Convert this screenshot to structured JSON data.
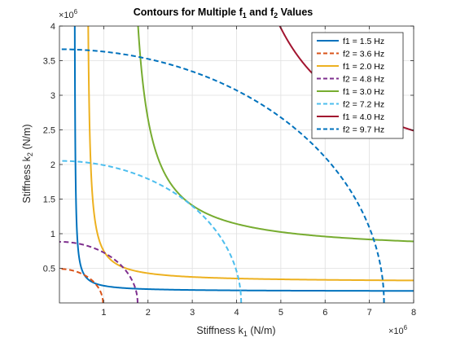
{
  "chart_data": {
    "type": "line",
    "title": {
      "prefix": "Contours for Multiple f",
      "sub1": "1",
      "mid": " and f",
      "sub2": "2",
      "suffix": " Values"
    },
    "xlabel": {
      "main": "Stiffness k",
      "sub": "1",
      "unit": " (N/m)"
    },
    "ylabel": {
      "main": "Stiffness k",
      "sub": "2",
      "unit": " (N/m)"
    },
    "x_exponent": {
      "base": "×10",
      "power": "6"
    },
    "y_exponent": {
      "base": "×10",
      "power": "6"
    },
    "xlim": [
      0,
      8
    ],
    "ylim": [
      0,
      4
    ],
    "x_ticks": [
      1,
      2,
      3,
      4,
      5,
      6,
      7,
      8
    ],
    "y_ticks": [
      0.5,
      1,
      1.5,
      2,
      2.5,
      3,
      3.5,
      4
    ],
    "x_tick_labels": [
      "1",
      "2",
      "3",
      "4",
      "5",
      "6",
      "7",
      "8"
    ],
    "y_tick_labels": [
      "0.5",
      "1",
      "1.5",
      "2",
      "2.5",
      "3",
      "3.5",
      "4"
    ],
    "grid": true,
    "legend_position": "top-right",
    "series": [
      {
        "name": "f1 = 1.5 Hz",
        "kind": "f1",
        "style": "solid",
        "color": "#0072BD",
        "asymptote_x": 0.332,
        "asymptote_y": 0.166
      },
      {
        "name": "f2 = 3.6 Hz",
        "kind": "f2",
        "style": "dashed",
        "color": "#D95319",
        "x_intercept": 0.983,
        "y_intercept": 0.491
      },
      {
        "name": "f1 = 2.0 Hz",
        "kind": "f1",
        "style": "solid",
        "color": "#EDB120",
        "asymptote_x": 0.601,
        "asymptote_y": 0.3
      },
      {
        "name": "f2 = 4.8 Hz",
        "kind": "f2",
        "style": "dashed",
        "color": "#7E2F8E",
        "x_intercept": 1.765,
        "y_intercept": 0.883
      },
      {
        "name": "f1 = 3.0 Hz",
        "kind": "f1",
        "style": "solid",
        "color": "#77AC30",
        "asymptote_x": 1.453,
        "asymptote_y": 0.727
      },
      {
        "name": "f2 = 7.2 Hz",
        "kind": "f2",
        "style": "dashed",
        "color": "#4DBEEE",
        "x_intercept": 4.104,
        "y_intercept": 2.052
      },
      {
        "name": "f1 = 4.0 Hz",
        "kind": "f1",
        "style": "solid",
        "color": "#A2142F",
        "asymptote_x": 3.069,
        "asymptote_y": 1.534
      },
      {
        "name": "f2 = 9.7 Hz",
        "kind": "f2",
        "style": "dashed",
        "color": "#0072BD",
        "x_intercept": 7.33,
        "y_intercept": 3.665
      }
    ]
  }
}
